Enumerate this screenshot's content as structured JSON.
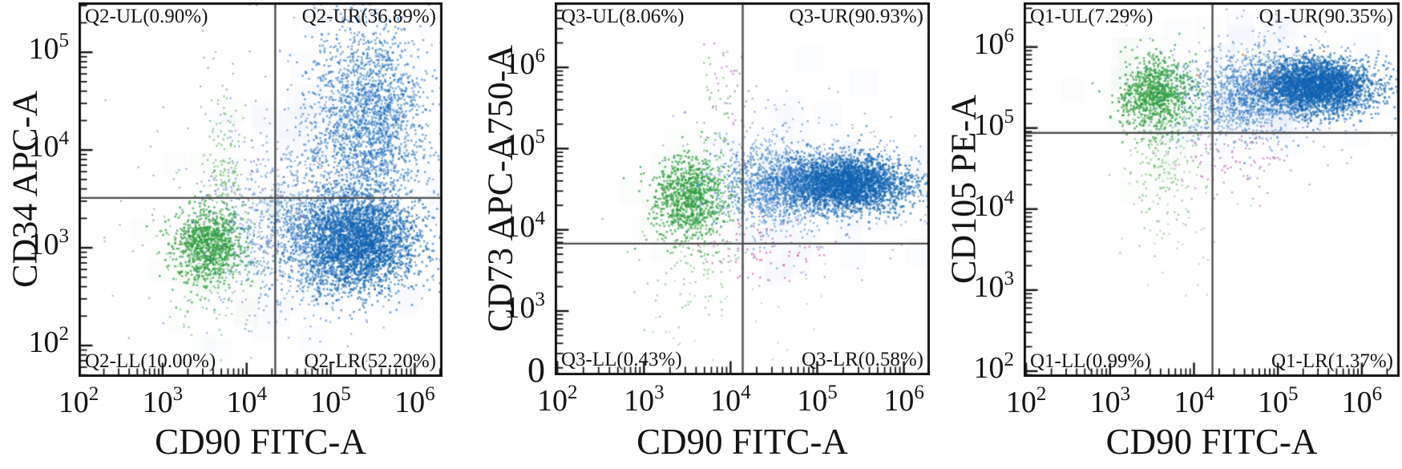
{
  "figure": {
    "background": "#ffffff",
    "frame_color": "#141414",
    "crosshair_color": "#4f4f4f",
    "palette": {
      "green_core": "#2d9e3d",
      "blue_core": "#0f63b0",
      "blue_light": "#2e78c8",
      "indigo_speck": "#3b55b0",
      "pink": "#c050a0",
      "purple": "#b05ab0",
      "orange": "#e07820"
    }
  },
  "chart_data": [
    {
      "type": "scatter",
      "xlabel": "CD90 FITC-A",
      "ylabel": "CD34 APC-A",
      "x_scale": "log",
      "y_scale": "log",
      "x_domain_log": [
        2.0,
        6.33
      ],
      "y_domain_log": [
        1.68,
        5.51
      ],
      "x_tick_exponents": [
        2,
        3,
        4,
        5,
        6
      ],
      "y_tick_exponents": [
        2,
        3,
        4,
        5
      ],
      "y_bottom_label": "",
      "quadrant_gate": {
        "x_log": 4.34,
        "y_log": 3.51,
        "x_value": 22000,
        "y_value": 3200
      },
      "quadrants": {
        "ul": {
          "label": "Q2-UL(0.90%)",
          "pct": 0.9
        },
        "ur": {
          "label": "Q2-UR(36.89%)",
          "pct": 36.89
        },
        "ll": {
          "label": "Q2-LL(10.00%)",
          "pct": 10.0
        },
        "lr": {
          "label": "Q2-LR(52.20%)",
          "pct": 52.2
        }
      },
      "clusters": [
        {
          "name": "haze-blue",
          "color": "#a9cde9",
          "alpha": 0.05,
          "n": 70,
          "cx": 5.05,
          "cy": 3.6,
          "sx": 0.65,
          "sy": 0.75,
          "size": 34,
          "shape": "square"
        },
        {
          "name": "haze-green",
          "color": "#bfe0bf",
          "alpha": 0.055,
          "n": 26,
          "cx": 3.6,
          "cy": 3.1,
          "sx": 0.4,
          "sy": 0.5,
          "size": 30,
          "shape": "square"
        },
        {
          "name": "green-core",
          "color": "#2d9e3d",
          "alpha": 0.7,
          "n": 900,
          "cx": 3.55,
          "cy": 3.02,
          "sx": 0.21,
          "sy": 0.2,
          "size": 2.6
        },
        {
          "name": "green-tail-up",
          "color": "#4aa84a",
          "alpha": 0.55,
          "n": 140,
          "cx": 3.73,
          "cy": 3.85,
          "sx": 0.13,
          "sy": 0.38,
          "size": 2.4
        },
        {
          "name": "green-sparse",
          "color": "#55a85c",
          "alpha": 0.5,
          "n": 130,
          "cx": 3.5,
          "cy": 2.75,
          "sx": 0.38,
          "sy": 0.42,
          "size": 2.4
        },
        {
          "name": "blue-lr-dense",
          "color": "#0f63b0",
          "alpha": 0.6,
          "n": 3200,
          "cx": 5.28,
          "cy": 3.05,
          "sx": 0.36,
          "sy": 0.25,
          "size": 2.6
        },
        {
          "name": "blue-ur",
          "color": "#1a6cc0",
          "alpha": 0.55,
          "n": 2100,
          "cx": 5.45,
          "cy": 4.25,
          "sx": 0.34,
          "sy": 0.55,
          "size": 2.6
        },
        {
          "name": "blue-bridge",
          "color": "#2e78c8",
          "alpha": 0.5,
          "n": 750,
          "cx": 4.5,
          "cy": 3.2,
          "sx": 0.42,
          "sy": 0.38,
          "size": 2.4
        },
        {
          "name": "blue-speckle",
          "color": "#3b55b0",
          "alpha": 0.5,
          "n": 300,
          "cx": 4.7,
          "cy": 3.6,
          "sx": 0.9,
          "sy": 0.8,
          "size": 2.2
        },
        {
          "name": "pink-speckle",
          "color": "#c050a0",
          "alpha": 0.55,
          "n": 40,
          "cx": 4.5,
          "cy": 3.3,
          "sx": 0.6,
          "sy": 0.5,
          "size": 2.2
        }
      ]
    },
    {
      "type": "scatter",
      "xlabel": "CD90 FITC-A",
      "ylabel": "CD73 APC-A750-A",
      "x_scale": "log",
      "y_scale": "log",
      "x_domain_log": [
        1.97,
        6.3
      ],
      "y_domain_log": [
        2.21,
        6.8
      ],
      "x_tick_exponents": [
        2,
        3,
        4,
        5,
        6
      ],
      "y_tick_exponents": [
        3,
        4,
        5,
        6
      ],
      "y_bottom_label": "0",
      "quadrant_gate": {
        "x_log": 4.14,
        "y_log": 3.83,
        "x_value": 14000,
        "y_value": 6800
      },
      "quadrants": {
        "ul": {
          "label": "Q3-UL(8.06%)",
          "pct": 8.06
        },
        "ur": {
          "label": "Q3-UR(90.93%)",
          "pct": 90.93
        },
        "ll": {
          "label": "Q3-LL(0.43%)",
          "pct": 0.43
        },
        "lr": {
          "label": "Q3-LR(0.58%)",
          "pct": 0.58
        }
      },
      "clusters": [
        {
          "name": "haze-blue",
          "color": "#a9cde9",
          "alpha": 0.05,
          "n": 60,
          "cx": 5.0,
          "cy": 4.6,
          "sx": 0.6,
          "sy": 0.5,
          "size": 34,
          "shape": "square"
        },
        {
          "name": "haze-green",
          "color": "#bfe0bf",
          "alpha": 0.055,
          "n": 22,
          "cx": 3.5,
          "cy": 4.45,
          "sx": 0.32,
          "sy": 0.4,
          "size": 30,
          "shape": "square"
        },
        {
          "name": "green-core",
          "color": "#2d9e3d",
          "alpha": 0.7,
          "n": 850,
          "cx": 3.52,
          "cy": 4.4,
          "sx": 0.21,
          "sy": 0.24,
          "size": 2.6
        },
        {
          "name": "green-sparse-down",
          "color": "#4aa84a",
          "alpha": 0.5,
          "n": 130,
          "cx": 3.55,
          "cy": 3.85,
          "sx": 0.3,
          "sy": 0.45,
          "size": 2.4
        },
        {
          "name": "green-trail-top",
          "color": "#59ad59",
          "alpha": 0.6,
          "n": 40,
          "cx": 3.85,
          "cy": 5.45,
          "sx": 0.18,
          "sy": 0.5,
          "size": 2.4
        },
        {
          "name": "magenta-trail-top",
          "color": "#a967b5",
          "alpha": 0.6,
          "n": 38,
          "cx": 3.98,
          "cy": 5.75,
          "sx": 0.14,
          "sy": 0.45,
          "size": 2.4
        },
        {
          "name": "blue-dense",
          "color": "#0f63b0",
          "alpha": 0.6,
          "n": 3300,
          "cx": 5.3,
          "cy": 4.57,
          "sx": 0.38,
          "sy": 0.17,
          "size": 2.6
        },
        {
          "name": "blue-bridge",
          "color": "#2e78c8",
          "alpha": 0.5,
          "n": 1100,
          "cx": 4.45,
          "cy": 4.55,
          "sx": 0.35,
          "sy": 0.28,
          "size": 2.4
        },
        {
          "name": "blue-speckle",
          "color": "#3b55b0",
          "alpha": 0.45,
          "n": 230,
          "cx": 4.9,
          "cy": 4.65,
          "sx": 0.8,
          "sy": 0.55,
          "size": 2.2
        },
        {
          "name": "pink-below",
          "color": "#c0509a",
          "alpha": 0.6,
          "n": 70,
          "cx": 4.35,
          "cy": 3.72,
          "sx": 0.35,
          "sy": 0.2,
          "size": 2.4
        },
        {
          "name": "sparse-low",
          "color": "#6aa86a",
          "alpha": 0.4,
          "n": 45,
          "cx": 3.9,
          "cy": 3.1,
          "sx": 0.6,
          "sy": 0.5,
          "size": 2.2
        }
      ]
    },
    {
      "type": "scatter",
      "xlabel": "CD90 FITC-A",
      "ylabel": "CD105 PE-A",
      "x_scale": "log",
      "y_scale": "log",
      "x_domain_log": [
        1.97,
        6.45
      ],
      "y_domain_log": [
        1.93,
        6.55
      ],
      "x_tick_exponents": [
        2,
        3,
        4,
        5,
        6
      ],
      "y_tick_exponents": [
        2,
        3,
        4,
        5,
        6
      ],
      "y_bottom_label": "",
      "quadrant_gate": {
        "x_log": 4.22,
        "y_log": 4.94,
        "x_value": 16000,
        "y_value": 87000
      },
      "quadrants": {
        "ul": {
          "label": "Q1-UL(7.29%)",
          "pct": 7.29
        },
        "ur": {
          "label": "Q1-UR(90.35%)",
          "pct": 90.35
        },
        "ll": {
          "label": "Q1-LL(0.99%)",
          "pct": 0.99
        },
        "lr": {
          "label": "Q1-LR(1.37%)",
          "pct": 1.37
        }
      },
      "clusters": [
        {
          "name": "haze-blue",
          "color": "#a9cde9",
          "alpha": 0.05,
          "n": 60,
          "cx": 5.05,
          "cy": 5.45,
          "sx": 0.55,
          "sy": 0.42,
          "size": 34,
          "shape": "square"
        },
        {
          "name": "haze-green",
          "color": "#bfe0bf",
          "alpha": 0.055,
          "n": 24,
          "cx": 3.55,
          "cy": 5.3,
          "sx": 0.3,
          "sy": 0.45,
          "size": 30,
          "shape": "square"
        },
        {
          "name": "green-core",
          "color": "#2d9e3d",
          "alpha": 0.7,
          "n": 850,
          "cx": 3.55,
          "cy": 5.42,
          "sx": 0.22,
          "sy": 0.22,
          "size": 2.6
        },
        {
          "name": "green-tail-down",
          "color": "#4aa84a",
          "alpha": 0.5,
          "n": 200,
          "cx": 3.62,
          "cy": 4.7,
          "sx": 0.2,
          "sy": 0.5,
          "size": 2.4
        },
        {
          "name": "blue-dense",
          "color": "#0f63b0",
          "alpha": 0.6,
          "n": 3300,
          "cx": 5.45,
          "cy": 5.52,
          "sx": 0.35,
          "sy": 0.17,
          "size": 2.6
        },
        {
          "name": "blue-bridge",
          "color": "#2e78c8",
          "alpha": 0.5,
          "n": 1050,
          "cx": 4.55,
          "cy": 5.4,
          "sx": 0.34,
          "sy": 0.27,
          "size": 2.4
        },
        {
          "name": "blue-speckle",
          "color": "#3b55b0",
          "alpha": 0.45,
          "n": 200,
          "cx": 4.9,
          "cy": 5.5,
          "sx": 0.75,
          "sy": 0.5,
          "size": 2.2
        },
        {
          "name": "purple-below",
          "color": "#b05ab0",
          "alpha": 0.55,
          "n": 90,
          "cx": 4.6,
          "cy": 4.6,
          "sx": 0.4,
          "sy": 0.22,
          "size": 2.4
        },
        {
          "name": "sparse-low-green",
          "color": "#6aa86a",
          "alpha": 0.45,
          "n": 60,
          "cx": 3.75,
          "cy": 4.05,
          "sx": 0.3,
          "sy": 0.5,
          "size": 2.2
        },
        {
          "name": "rare-orange",
          "color": "#e07820",
          "alpha": 0.8,
          "n": 6,
          "cx": 4.6,
          "cy": 5.7,
          "sx": 0.5,
          "sy": 0.3,
          "size": 2.6
        }
      ]
    }
  ]
}
